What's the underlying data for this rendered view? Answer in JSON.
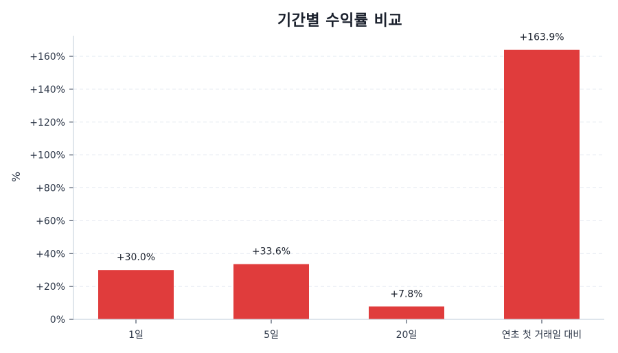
{
  "chart_data": {
    "type": "bar",
    "title": "기간별 수익률 비교",
    "xlabel": "",
    "ylabel": "%",
    "categories": [
      "1일",
      "5일",
      "20일",
      "연초 첫 거래일 대비"
    ],
    "values": [
      30.0,
      33.6,
      7.8,
      163.9
    ],
    "value_labels": [
      "+30.0%",
      "+33.6%",
      "+7.8%",
      "+163.9%"
    ],
    "ylim": [
      0,
      172
    ],
    "yticks": [
      0,
      20,
      40,
      60,
      80,
      100,
      120,
      140,
      160
    ],
    "ytick_labels": [
      "0%",
      "+20%",
      "+40%",
      "+60%",
      "+80%",
      "+100%",
      "+120%",
      "+140%",
      "+160%"
    ],
    "grid": true,
    "bar_color": "#e03c3c",
    "legend": null
  }
}
